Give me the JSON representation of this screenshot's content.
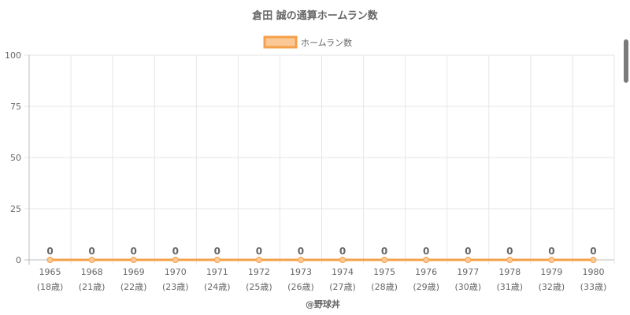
{
  "chart_data": {
    "type": "line",
    "title": "倉田 誠の通算ホームラン数",
    "categories": [
      "1965",
      "1968",
      "1969",
      "1970",
      "1971",
      "1972",
      "1973",
      "1974",
      "1975",
      "1976",
      "1977",
      "1978",
      "1979",
      "1980"
    ],
    "sublabels": [
      "(18歳)",
      "(21歳)",
      "(22歳)",
      "(23歳)",
      "(24歳)",
      "(25歳)",
      "(26歳)",
      "(27歳)",
      "(28歳)",
      "(29歳)",
      "(30歳)",
      "(31歳)",
      "(32歳)",
      "(33歳)"
    ],
    "series": [
      {
        "name": "ホームラン数",
        "values": [
          0,
          0,
          0,
          0,
          0,
          0,
          0,
          0,
          0,
          0,
          0,
          0,
          0,
          0
        ]
      }
    ],
    "ylim": [
      0,
      100
    ],
    "yticks": [
      0,
      25,
      50,
      75,
      100
    ],
    "grid": true,
    "legend": "top-center",
    "colors": {
      "line": "#f5a04a",
      "fill": "#fbc995",
      "point": "#fbc995"
    }
  },
  "credit": "@野球丼"
}
